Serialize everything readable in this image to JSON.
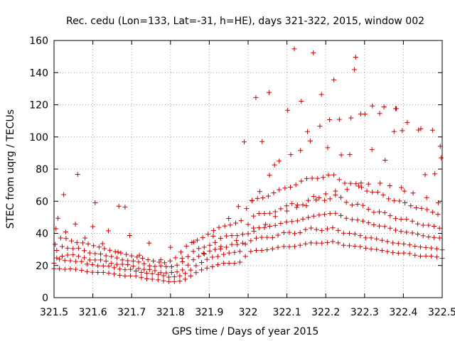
{
  "chart_data": {
    "type": "scatter",
    "title": "Rec. cedu (Lon=133, Lat=-31, h=HE), days 321-322, 2015, window 002",
    "xlabel": "GPS time / Days of year 2015",
    "ylabel": "STEC from uqrg / TECUs",
    "xlim": [
      321.5,
      322.5
    ],
    "ylim": [
      0,
      160
    ],
    "xticks": [
      321.5,
      321.6,
      321.7,
      321.8,
      321.9,
      322,
      322.1,
      322.2,
      322.3,
      322.4,
      322.5
    ],
    "xtick_labels": [
      "321.5",
      "321.6",
      "321.7",
      "321.8",
      "321.9",
      "322",
      "322.1",
      "322.2",
      "322.3",
      "322.4",
      "322.5"
    ],
    "yticks": [
      0,
      20,
      40,
      60,
      80,
      100,
      120,
      140,
      160
    ],
    "ytick_labels": [
      "0",
      "20",
      "40",
      "60",
      "80",
      "100",
      "120",
      "140",
      "160"
    ],
    "grid": true,
    "marker": "+",
    "color": "#cc0000",
    "series": [
      {
        "name": "STEC",
        "x": [
          321.5,
          321.514,
          321.528,
          321.542,
          321.556,
          321.571,
          321.585,
          321.599,
          321.613,
          321.627,
          321.641,
          321.655,
          321.669,
          321.683,
          321.697,
          321.711,
          321.725,
          321.739,
          321.753,
          321.768,
          321.782,
          321.796,
          321.81,
          321.824,
          321.838,
          321.852,
          321.866,
          321.88,
          321.894,
          321.908,
          321.922,
          321.937,
          321.951,
          321.965,
          321.979,
          321.993,
          322.007,
          322.021,
          322.035,
          322.049,
          322.063,
          322.077,
          322.092,
          322.106,
          322.12,
          322.134,
          322.148,
          322.162,
          322.176,
          322.19,
          322.204,
          322.218,
          322.232,
          322.246,
          322.261,
          322.275,
          322.289,
          322.303,
          322.317,
          322.331,
          322.345,
          322.359,
          322.373,
          322.387,
          322.401,
          322.416,
          322.43,
          322.444,
          322.458,
          322.472,
          322.486,
          322.5,
          321.5,
          321.514,
          321.528,
          321.542,
          321.556,
          321.571,
          321.585,
          321.599,
          321.613,
          321.627,
          321.641,
          321.655,
          321.669,
          321.683,
          321.697,
          321.711,
          321.725,
          321.739,
          321.753,
          321.768,
          321.782,
          321.796,
          321.81,
          321.824,
          321.838,
          321.852,
          321.866,
          321.88,
          321.894,
          321.908,
          321.922,
          321.937,
          321.951,
          321.965,
          321.979,
          321.993,
          322.007,
          322.021,
          322.035,
          322.049,
          322.063,
          322.077,
          322.092,
          322.106,
          322.12,
          322.134,
          322.148,
          322.162,
          322.176,
          322.19,
          322.204,
          322.218,
          322.232,
          322.246,
          322.261,
          322.275,
          322.289,
          322.303,
          322.317,
          322.331,
          322.345,
          322.359,
          322.373,
          322.387,
          322.401,
          322.416,
          322.43,
          322.444,
          322.458,
          322.472,
          322.486,
          322.5,
          321.507,
          321.521,
          321.535,
          321.549,
          321.563,
          321.578,
          321.592,
          321.606,
          321.62,
          321.634,
          321.648,
          321.662,
          321.676,
          321.69,
          321.704,
          321.718,
          321.732,
          321.746,
          321.76,
          321.775,
          321.789,
          321.803,
          321.817,
          321.831,
          321.845,
          321.859,
          321.873,
          321.887,
          321.901,
          321.915,
          321.929,
          321.944,
          321.958,
          321.972,
          321.986,
          322.0,
          322.014,
          322.028,
          322.042,
          322.056,
          322.07,
          322.084,
          322.099,
          322.113,
          322.127,
          322.141,
          322.155,
          322.169,
          322.183,
          322.197,
          322.211,
          322.225,
          322.239,
          322.253,
          322.268,
          322.282,
          322.296,
          322.31,
          322.324,
          322.338,
          322.352,
          322.366,
          322.38,
          322.394,
          322.408,
          322.423,
          322.437,
          322.451,
          322.465,
          322.479,
          322.493,
          321.507,
          321.521,
          321.535,
          321.549,
          321.563,
          321.578,
          321.592,
          321.606,
          321.62,
          321.634,
          321.648,
          321.662,
          321.676,
          321.69,
          321.704,
          321.718,
          321.732,
          321.746,
          321.76,
          321.775,
          321.789,
          321.803,
          321.817,
          321.831,
          321.845,
          321.859,
          321.873,
          321.887,
          321.901,
          321.915,
          321.929,
          321.944,
          321.958,
          321.972,
          321.986,
          322.0,
          322.014,
          322.028,
          322.042,
          322.056,
          322.07,
          322.084,
          322.099,
          322.113,
          322.127,
          322.141,
          322.155,
          322.169,
          322.183,
          322.197,
          322.211,
          322.225,
          322.239,
          322.253,
          322.268,
          322.282,
          322.296,
          322.31,
          322.324,
          322.338,
          322.352,
          322.366,
          322.38,
          322.394,
          322.408,
          322.423,
          322.437,
          322.451,
          322.465,
          322.479,
          322.493,
          321.503,
          321.517,
          321.531,
          321.545,
          321.559,
          321.574,
          321.588,
          321.602,
          321.616,
          321.63,
          321.644,
          321.658,
          321.672,
          321.686,
          321.7,
          321.714,
          321.728,
          321.742,
          321.756,
          321.771,
          321.785,
          321.799,
          321.813,
          321.827,
          321.841,
          321.855,
          321.869,
          321.883,
          321.897,
          321.911,
          321.925,
          321.94,
          321.954,
          321.968,
          321.982,
          321.996,
          322.01,
          322.024,
          322.038,
          322.052,
          322.066,
          322.08,
          322.095,
          322.109,
          322.123,
          322.137,
          322.151,
          322.165,
          322.179,
          322.193,
          322.207,
          322.221,
          322.235,
          322.249,
          322.264,
          322.278,
          322.292,
          322.306,
          322.32,
          322.334,
          322.348,
          322.362,
          322.376,
          322.39,
          322.404,
          322.419,
          322.433,
          322.447,
          322.461,
          322.475,
          322.489,
          321.51,
          321.555,
          321.6,
          321.64,
          321.695,
          321.745,
          321.8,
          321.86,
          321.91,
          321.95,
          321.975,
          322.01,
          322.03,
          322.055,
          322.08,
          322.11,
          322.135,
          322.16,
          322.185,
          322.21,
          322.235,
          322.265,
          322.29,
          322.32,
          322.35,
          322.38,
          322.41,
          322.445,
          322.475,
          322.495,
          321.505,
          321.53,
          321.58,
          321.625,
          321.665,
          321.72,
          321.775,
          321.83,
          321.885,
          321.93,
          321.97,
          322.015,
          322.045,
          322.07,
          322.1,
          322.125,
          322.15,
          322.175,
          322.2,
          322.225,
          322.255,
          322.285,
          322.31,
          322.34,
          322.365,
          322.395,
          322.425,
          322.46,
          322.49,
          321.525,
          321.561,
          321.606,
          321.667,
          321.683,
          321.99,
          322.02,
          322.036,
          322.054,
          322.068,
          322.102,
          322.119,
          322.137,
          322.153,
          322.168,
          322.189,
          322.205,
          322.221,
          322.24,
          322.262,
          322.274,
          322.277,
          322.291,
          322.301,
          322.319,
          322.339,
          322.353,
          322.376,
          322.382,
          322.397,
          322.403,
          322.439,
          322.456,
          322.481,
          322.497
        ],
        "y": [
          18.0,
          18.0,
          17.7,
          17.9,
          17.6,
          17.0,
          16.2,
          15.8,
          15.7,
          15.7,
          15.3,
          14.7,
          13.9,
          13.5,
          13.6,
          13.4,
          12.5,
          11.7,
          11.5,
          11.1,
          10.5,
          10.0,
          10.0,
          10.3,
          11.5,
          13.5,
          15.6,
          17.3,
          18.4,
          19.3,
          20.5,
          21.4,
          21.4,
          21.4,
          22.1,
          25.7,
          28.8,
          29.4,
          29.4,
          29.8,
          30.4,
          31.3,
          31.8,
          31.7,
          31.9,
          32.6,
          33.5,
          34.1,
          34.0,
          33.9,
          34.3,
          34.9,
          34.1,
          32.6,
          32.3,
          32.0,
          31.7,
          30.8,
          30.2,
          30.0,
          29.4,
          28.7,
          28.0,
          27.7,
          27.8,
          27.4,
          26.4,
          25.8,
          25.9,
          25.8,
          25.3,
          24.5,
          21.5,
          23.9,
          23.1,
          23.0,
          22.5,
          22.5,
          20.9,
          20.6,
          19.8,
          19.7,
          19.6,
          18.6,
          17.8,
          17.4,
          17.6,
          16.6,
          15.7,
          15.2,
          14.9,
          14.5,
          13.7,
          12.8,
          13.0,
          13.6,
          15.1,
          17.2,
          19.9,
          21.9,
          23.8,
          25.2,
          25.6,
          26.9,
          27.8,
          28.2,
          28.8,
          33.3,
          35.4,
          37.0,
          37.5,
          37.5,
          37.4,
          38.9,
          40.5,
          40.6,
          39.9,
          40.5,
          42.4,
          43.3,
          42.4,
          41.7,
          42.8,
          43.5,
          41.8,
          40.1,
          40.0,
          39.6,
          38.6,
          37.2,
          37.2,
          36.6,
          35.7,
          34.9,
          34.1,
          33.7,
          33.4,
          32.8,
          32.0,
          31.5,
          31.2,
          30.9,
          30.4,
          29.7,
          24.7,
          25.8,
          26.5,
          26.7,
          25.7,
          24.8,
          23.5,
          23.4,
          23.5,
          22.7,
          21.3,
          20.7,
          20.8,
          20.6,
          19.5,
          18.1,
          17.6,
          17.5,
          16.8,
          15.6,
          15.4,
          15.7,
          16.0,
          17.3,
          20.2,
          23.6,
          25.7,
          27.2,
          29.0,
          30.0,
          30.3,
          31.4,
          33.1,
          33.1,
          33.9,
          39.8,
          43.3,
          43.5,
          43.6,
          44.4,
          45.0,
          46.2,
          47.1,
          47.4,
          47.8,
          48.9,
          49.9,
          50.7,
          51.4,
          51.8,
          52.3,
          52.5,
          51.1,
          49.4,
          48.6,
          48.3,
          47.6,
          46.6,
          45.3,
          44.6,
          44.3,
          43.2,
          42.0,
          41.2,
          40.7,
          40.3,
          39.5,
          38.5,
          37.8,
          37.4,
          37.1,
          29.4,
          31.8,
          30.8,
          30.5,
          30.8,
          29.3,
          27.8,
          27.4,
          27.1,
          26.1,
          25.6,
          24.7,
          23.5,
          23.0,
          22.8,
          22.2,
          21.1,
          19.8,
          19.4,
          19.7,
          19.3,
          19.2,
          20.2,
          22.3,
          25.5,
          28.8,
          30.6,
          31.4,
          32.6,
          34.3,
          36.9,
          38.4,
          38.6,
          38.6,
          39.4,
          45.6,
          50.8,
          52.4,
          52.4,
          52.5,
          53.5,
          55.3,
          57.1,
          58.5,
          57.7,
          57.8,
          60.5,
          63.0,
          62.1,
          60.5,
          61.5,
          63.9,
          62.4,
          59.3,
          57.6,
          58.1,
          57.4,
          55.0,
          53.1,
          53.4,
          52.9,
          51.0,
          49.2,
          48.8,
          48.8,
          47.6,
          45.9,
          45.1,
          45.1,
          44.4,
          43.2,
          33.2,
          37.1,
          36.8,
          35.3,
          34.3,
          34.1,
          33.4,
          32.3,
          31.5,
          30.5,
          29.5,
          28.6,
          27.8,
          26.9,
          26.0,
          25.3,
          24.5,
          23.6,
          22.8,
          22.1,
          21.7,
          22.9,
          24.8,
          28.4,
          32.0,
          34.3,
          35.8,
          37.4,
          39.5,
          41.8,
          43.7,
          44.6,
          45.2,
          46.4,
          47.9,
          55.4,
          60.5,
          61.7,
          62.1,
          63.2,
          65.2,
          67.1,
          68.2,
          68.8,
          70.2,
          72.5,
          74.1,
          74.3,
          74.2,
          74.8,
          76.3,
          76.4,
          73.4,
          71.2,
          71.1,
          70.9,
          68.6,
          66.3,
          65.7,
          65.6,
          63.9,
          61.5,
          60.4,
          60.1,
          59.0,
          57.2,
          55.9,
          55.5,
          54.8,
          53.2,
          51.8,
          49.4,
          45.8,
          44.2,
          41.6,
          38.7,
          33.9,
          31.3,
          34.6,
          38.3,
          49.3,
          56.7,
          60.3,
          66.0,
          76.2,
          85.0,
          89.0,
          91.6,
          97.5,
          106.7,
          110.7,
          110.9,
          111.8,
          114.3,
          119.3,
          118.7,
          117.6,
          109.0,
          105.1,
          104.2,
          94.2,
          42.9,
          40.9,
          37.1,
          33.6,
          28.4,
          26.4,
          23.6,
          24.5,
          27.7,
          31.8,
          35.5,
          41.3,
          45.6,
          50.5,
          53.9,
          56.2,
          57.2,
          60.8,
          64.6,
          66.3,
          67.3,
          69.4,
          70.6,
          71.2,
          69.6,
          68.5,
          65.1,
          62.2,
          59.0,
          64.1,
          76.7,
          59.0,
          56.9,
          56.4,
          96.9,
          124.5,
          97.1,
          127.6,
          82.6,
          116.6,
          154.8,
          122.2,
          103.3,
          152.3,
          126.4,
          93.3,
          135.5,
          88.8,
          89.0,
          141.9,
          149.6,
          71.3,
          114.2,
          92.1,
          114.6,
          85.5,
          103.3,
          117.6,
          103.9,
          66.3,
          104.3,
          76.5,
          77.0,
          87.0
        ]
      }
    ]
  }
}
